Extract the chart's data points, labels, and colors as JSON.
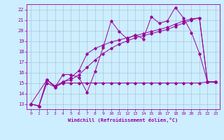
{
  "xlabel": "Windchill (Refroidissement éolien,°C)",
  "bg_color": "#cceeff",
  "line_color": "#990099",
  "grid_color": "#aabbcc",
  "xlim": [
    -0.5,
    23.5
  ],
  "ylim": [
    12.5,
    22.5
  ],
  "xticks": [
    0,
    1,
    2,
    3,
    4,
    5,
    6,
    7,
    8,
    9,
    10,
    11,
    12,
    13,
    14,
    15,
    16,
    17,
    18,
    19,
    20,
    21,
    22,
    23
  ],
  "yticks": [
    13,
    14,
    15,
    16,
    17,
    18,
    19,
    20,
    21,
    22
  ],
  "series1_x": [
    0,
    1,
    2,
    3,
    4,
    5,
    6,
    7,
    8,
    9,
    10,
    11,
    12,
    13,
    14,
    15,
    16,
    17,
    18,
    19,
    20,
    21,
    22,
    23
  ],
  "series1_y": [
    13.0,
    12.8,
    15.3,
    14.6,
    15.8,
    15.8,
    15.5,
    14.1,
    16.1,
    18.4,
    20.9,
    19.9,
    19.2,
    19.6,
    19.2,
    21.3,
    20.7,
    20.9,
    22.2,
    21.2,
    19.8,
    17.8,
    15.1,
    15.1
  ],
  "series2_x": [
    0,
    1,
    2,
    3,
    4,
    5,
    6,
    7,
    8,
    9,
    10,
    11,
    12,
    13,
    14,
    15,
    16,
    17,
    18,
    19,
    20,
    21,
    22,
    23
  ],
  "series2_y": [
    13.0,
    12.8,
    15.3,
    14.7,
    15.1,
    15.5,
    16.2,
    17.8,
    18.3,
    18.6,
    18.9,
    19.1,
    19.3,
    19.5,
    19.7,
    19.9,
    20.1,
    20.3,
    20.6,
    20.9,
    21.1,
    21.2,
    15.1,
    15.1
  ],
  "series3_x": [
    0,
    2,
    3,
    4,
    5,
    6,
    7,
    8,
    9,
    10,
    11,
    12,
    13,
    14,
    15,
    16,
    17,
    18,
    19,
    20,
    21,
    22,
    23
  ],
  "series3_y": [
    13.0,
    15.3,
    14.7,
    15.1,
    15.3,
    15.8,
    16.5,
    17.2,
    17.8,
    18.3,
    18.7,
    19.0,
    19.3,
    19.5,
    19.7,
    19.9,
    20.1,
    20.4,
    20.7,
    21.0,
    21.2,
    15.1,
    15.1
  ],
  "series4_x": [
    0,
    1,
    2,
    3,
    4,
    5,
    6,
    7,
    8,
    9,
    10,
    11,
    12,
    13,
    14,
    15,
    16,
    17,
    18,
    19,
    20,
    21,
    22,
    23
  ],
  "series4_y": [
    13.0,
    12.8,
    15.0,
    14.6,
    15.0,
    15.0,
    15.0,
    15.0,
    15.0,
    15.0,
    15.0,
    15.0,
    15.0,
    15.0,
    15.0,
    15.0,
    15.0,
    15.0,
    15.0,
    15.0,
    15.0,
    15.0,
    15.1,
    15.1
  ]
}
